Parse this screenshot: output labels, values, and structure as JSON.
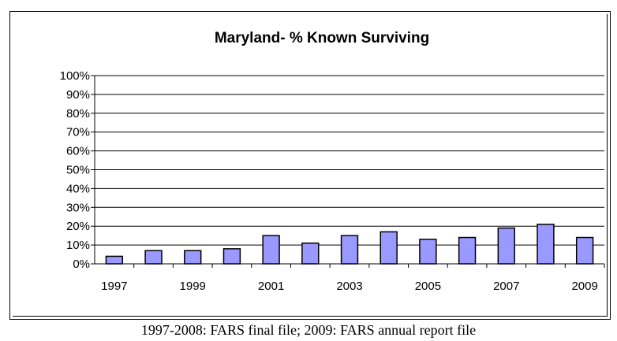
{
  "chart_data": {
    "type": "bar",
    "title": "Maryland- % Known Surviving",
    "categories": [
      "1997",
      "1998",
      "1999",
      "2000",
      "2001",
      "2002",
      "2003",
      "2004",
      "2005",
      "2006",
      "2007",
      "2008",
      "2009"
    ],
    "values": [
      4,
      7,
      7,
      8,
      15,
      11,
      15,
      17,
      13,
      14,
      19,
      21,
      14
    ],
    "x_tick_labels": [
      "1997",
      "1999",
      "2001",
      "2003",
      "2005",
      "2007",
      "2009"
    ],
    "y_tick_labels": [
      "0%",
      "10%",
      "20%",
      "30%",
      "40%",
      "50%",
      "60%",
      "70%",
      "80%",
      "90%",
      "100%"
    ],
    "ylim": [
      0,
      100
    ],
    "grid": true,
    "legend": "none",
    "bar_color": "#9999ff",
    "bar_edge_color": "#000000"
  },
  "caption": "1997-2008: FARS final file; 2009: FARS annual report file"
}
